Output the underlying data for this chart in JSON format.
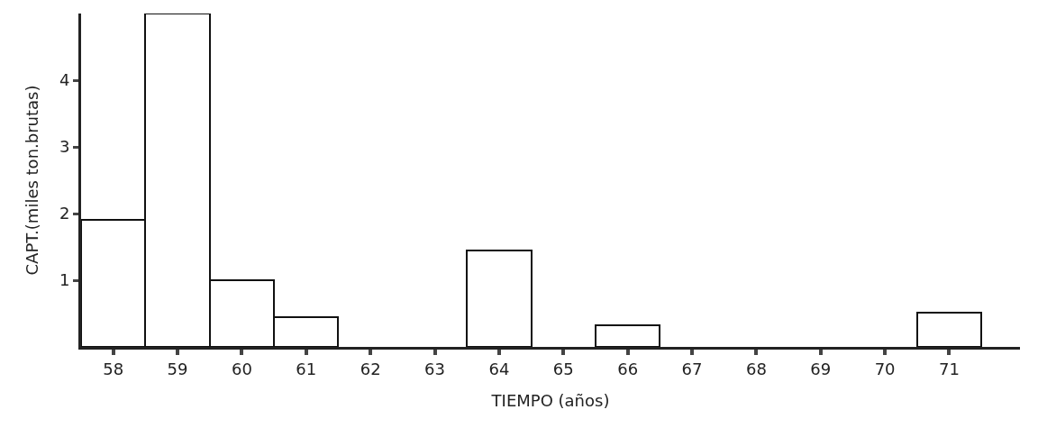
{
  "chart_data": {
    "type": "bar",
    "xlabel": "TIEMPO (años)",
    "ylabel": "CAPT.(miles ton.brutas)",
    "categories": [
      "58",
      "59",
      "60",
      "61",
      "62",
      "63",
      "64",
      "65",
      "66",
      "67",
      "68",
      "69",
      "70",
      "71"
    ],
    "values": [
      1.9,
      5.0,
      1.0,
      0.45,
      0,
      0,
      1.45,
      0,
      0.32,
      0,
      0,
      0,
      0,
      0.52
    ],
    "color": "#ffffff",
    "ylim": [
      0,
      5
    ],
    "yticks": [
      1,
      2,
      3,
      4
    ],
    "grid": false,
    "legend": false
  }
}
